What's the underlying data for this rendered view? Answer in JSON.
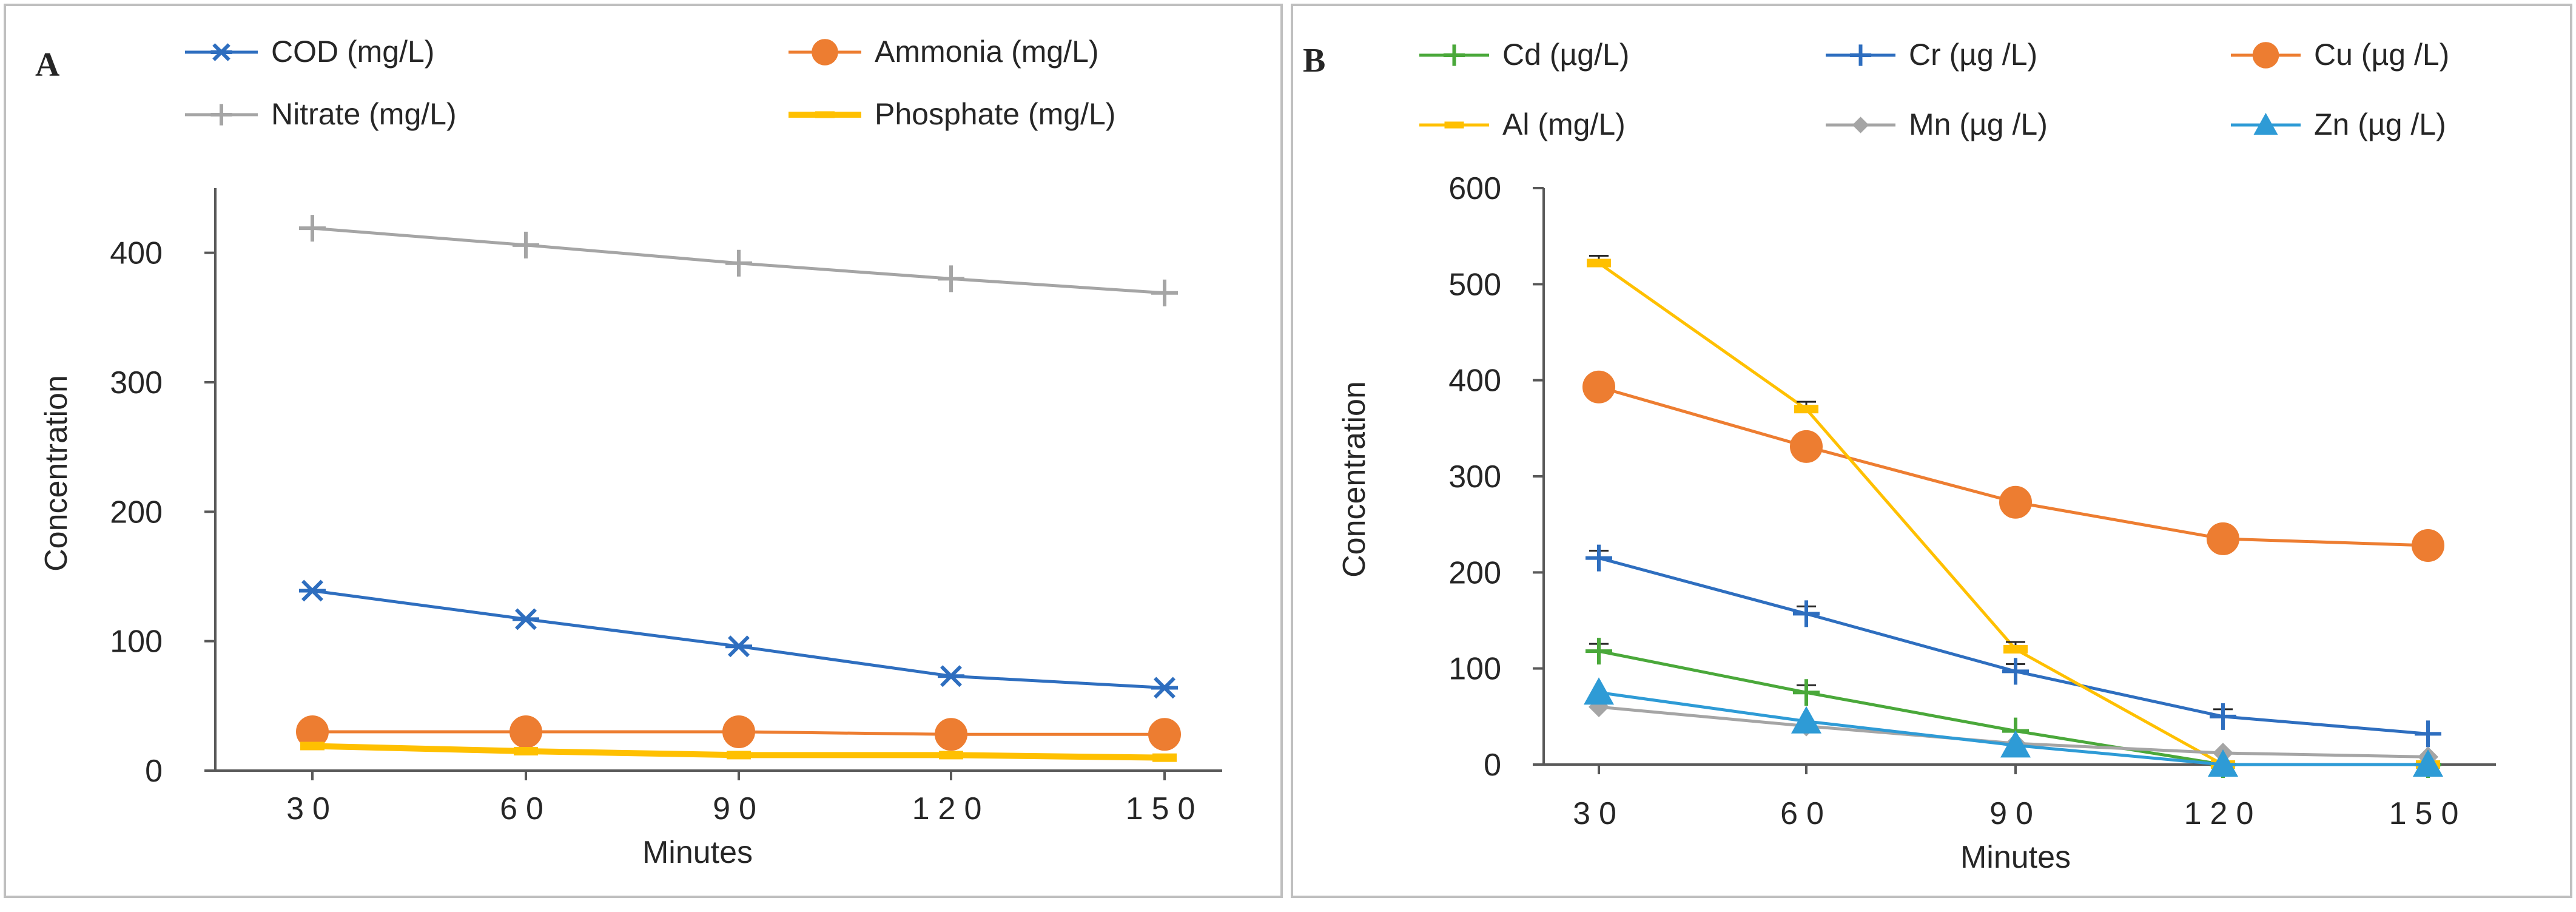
{
  "colors": {
    "cod": "#2e6ebf",
    "ammonia": "#ed7d31",
    "nitrate": "#a5a5a5",
    "phosphate": "#ffc000",
    "cd": "#4aa83a",
    "cr": "#2e6ebf",
    "cu": "#ed7d31",
    "al": "#ffc000",
    "mn": "#a5a5a5",
    "zn": "#2e9bd6",
    "axis": "#595959",
    "frame": "#bfbfbf"
  },
  "chart_data": [
    {
      "panel_label": "A",
      "type": "line",
      "xlabel": "Minutes",
      "ylabel": "Concentration",
      "categories": [
        "30",
        "60",
        "90",
        "120",
        "150"
      ],
      "ylim": [
        0,
        450
      ],
      "yticks": [
        "0",
        "100",
        "200",
        "300",
        "400"
      ],
      "legend_position": "top",
      "series": [
        {
          "name": "COD (mg/L)",
          "marker": "asterisk",
          "values": [
            139,
            117,
            96,
            73,
            64
          ]
        },
        {
          "name": "Ammonia (mg/L)",
          "marker": "circle",
          "values": [
            30,
            30,
            30,
            28,
            28
          ]
        },
        {
          "name": "Nitrate (mg/L)",
          "marker": "plus",
          "values": [
            419,
            406,
            392,
            380,
            369
          ]
        },
        {
          "name": "Phosphate  (mg/L)",
          "marker": "dash",
          "values": [
            19,
            15,
            12,
            12,
            10
          ]
        }
      ]
    },
    {
      "panel_label": "B",
      "type": "line",
      "xlabel": "Minutes",
      "ylabel": "Concentration",
      "categories": [
        "30",
        "60",
        "90",
        "120",
        "150"
      ],
      "ylim": [
        0,
        600
      ],
      "yticks": [
        "0",
        "100",
        "200",
        "300",
        "400",
        "500",
        "600"
      ],
      "legend_position": "top",
      "series": [
        {
          "name": "Cd (µg/L)",
          "marker": "plus",
          "values": [
            118,
            75,
            35,
            0,
            0
          ]
        },
        {
          "name": "Cr (µg /L)",
          "marker": "plus",
          "values": [
            215,
            157,
            97,
            50,
            32
          ]
        },
        {
          "name": "Cu (µg /L)",
          "marker": "circle",
          "values": [
            393,
            331,
            273,
            235,
            228
          ]
        },
        {
          "name": "Al (mg/L)",
          "marker": "dash",
          "values": [
            522,
            370,
            120,
            0,
            0
          ]
        },
        {
          "name": "Mn (µg /L)",
          "marker": "diamond",
          "values": [
            60,
            40,
            22,
            12,
            8
          ]
        },
        {
          "name": "Zn (µg /L)",
          "marker": "triangle",
          "values": [
            75,
            45,
            20,
            0,
            0
          ]
        }
      ]
    }
  ]
}
